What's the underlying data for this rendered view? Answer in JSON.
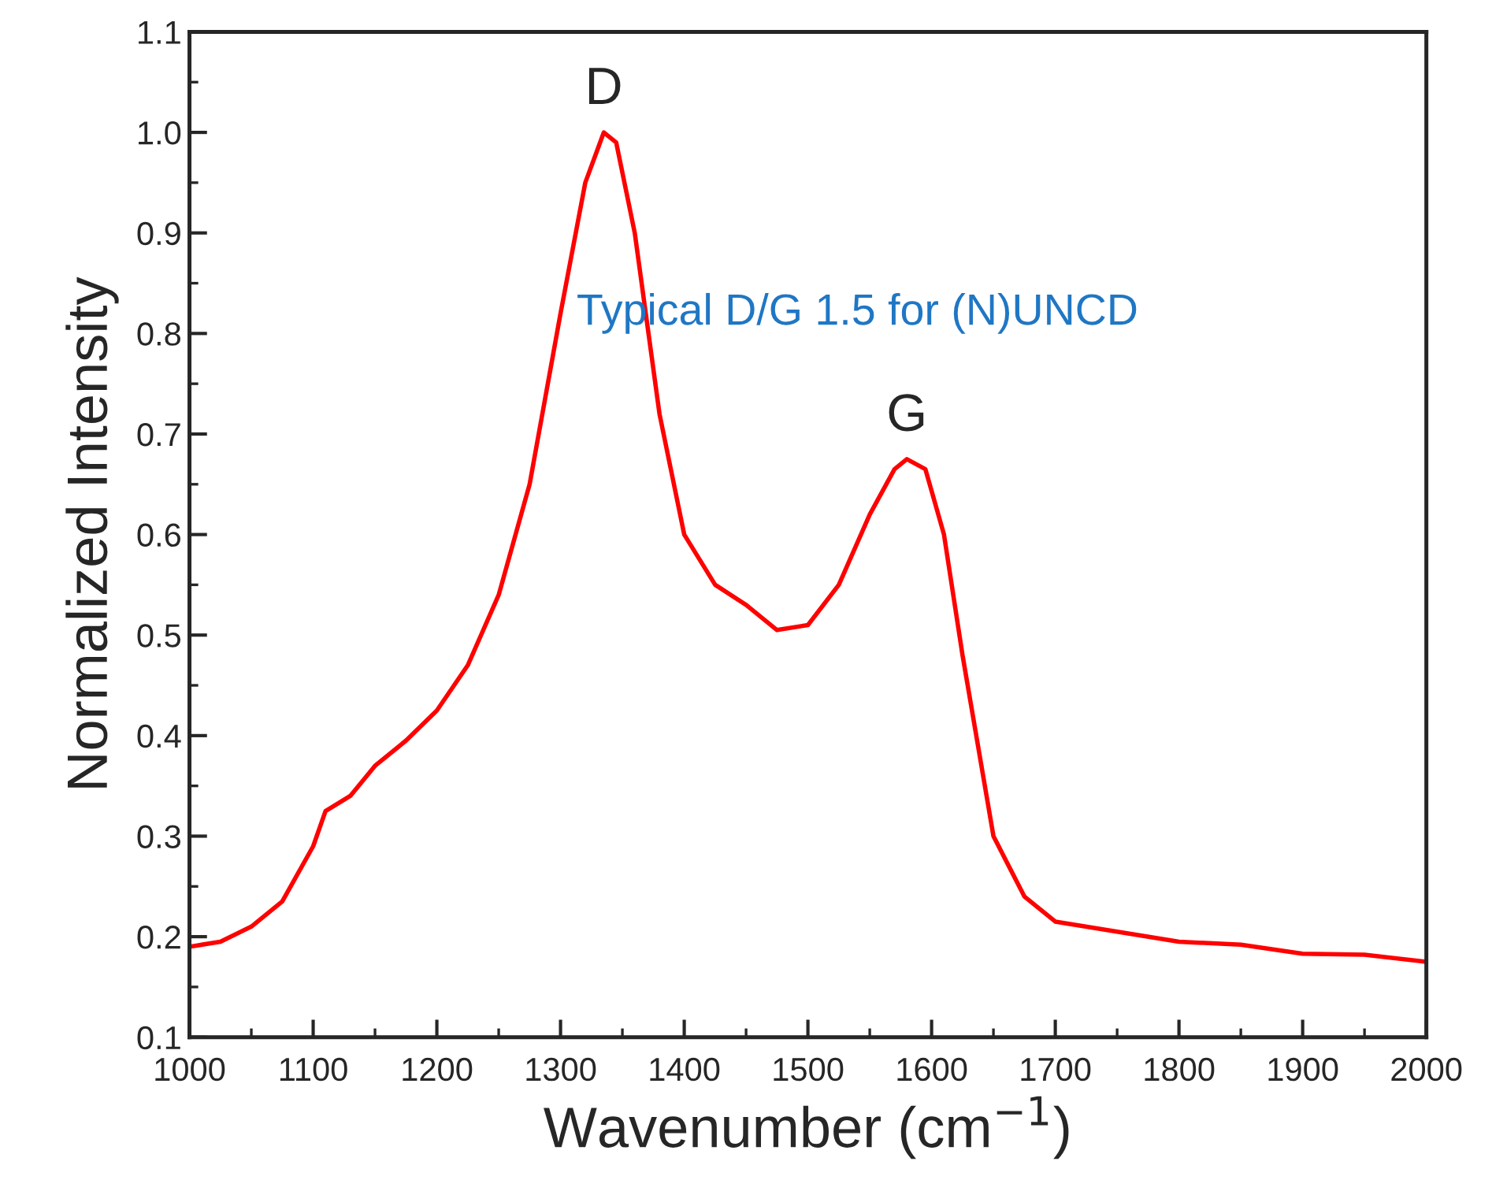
{
  "chart_data": {
    "type": "line",
    "xlabel": "Wavenumber (cm$^{−1}$)",
    "ylabel": "Normalized Intensity",
    "x": [
      1000,
      1025,
      1050,
      1075,
      1100,
      1110,
      1130,
      1150,
      1175,
      1200,
      1225,
      1250,
      1275,
      1300,
      1320,
      1335,
      1345,
      1360,
      1380,
      1400,
      1425,
      1450,
      1475,
      1500,
      1525,
      1550,
      1570,
      1580,
      1595,
      1610,
      1625,
      1650,
      1675,
      1700,
      1750,
      1800,
      1850,
      1900,
      1950,
      2000
    ],
    "series": [
      {
        "color": "#ff0000",
        "values": [
          0.19,
          0.195,
          0.21,
          0.235,
          0.29,
          0.325,
          0.34,
          0.37,
          0.395,
          0.425,
          0.47,
          0.54,
          0.65,
          0.82,
          0.95,
          1.0,
          0.99,
          0.9,
          0.72,
          0.6,
          0.55,
          0.53,
          0.505,
          0.51,
          0.55,
          0.62,
          0.665,
          0.675,
          0.665,
          0.6,
          0.48,
          0.3,
          0.24,
          0.215,
          0.205,
          0.195,
          0.192,
          0.183,
          0.182,
          0.175
        ]
      }
    ],
    "annotations": [
      {
        "text": "D",
        "x": 1335,
        "y": 1.0
      },
      {
        "text": "G",
        "x": 1580,
        "y": 0.675
      },
      "Typical D/G 1.5 for (N)UNCD"
    ],
    "xlim": [
      1000,
      2000
    ],
    "xticks": [
      1000,
      1100,
      1200,
      1300,
      1400,
      1500,
      1600,
      1700,
      1800,
      1900,
      2000
    ],
    "ylim": [
      0.1,
      1.1
    ],
    "yticks": [
      0.1,
      0.2,
      0.3,
      0.4,
      0.5,
      0.6,
      0.7,
      0.8,
      0.9,
      {
        "value": 1.0,
        "label": "1.0"
      },
      1.1
    ],
    "grid": false,
    "legend": false
  }
}
